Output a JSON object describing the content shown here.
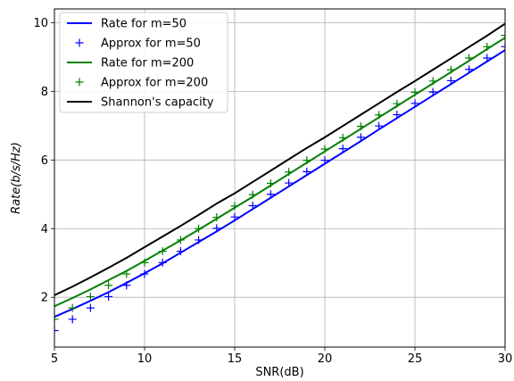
{
  "chart_data": {
    "type": "line",
    "xlabel": "SNR(dB)",
    "ylabel": "Rate(b/s/Hz)",
    "xlim": [
      5,
      30
    ],
    "ylim": [
      0.55,
      10.4
    ],
    "xticks": [
      5,
      10,
      15,
      20,
      25,
      30
    ],
    "yticks": [
      2,
      4,
      6,
      8,
      10
    ],
    "grid": true,
    "legend_position": "upper-left",
    "legend": [
      {
        "label": "Rate for m=50",
        "kind": "line",
        "color": "#0000ff"
      },
      {
        "label": "Approx for m=50",
        "kind": "marker",
        "color": "#0000ff"
      },
      {
        "label": "Rate for m=200",
        "kind": "line",
        "color": "#008000"
      },
      {
        "label": "Approx for m=200",
        "kind": "marker",
        "color": "#008000"
      },
      {
        "label": "Shannon's capacity",
        "kind": "line",
        "color": "#000000"
      }
    ],
    "x": [
      5,
      6,
      7,
      8,
      9,
      10,
      11,
      12,
      13,
      14,
      15,
      16,
      17,
      18,
      19,
      20,
      21,
      22,
      23,
      24,
      25,
      26,
      27,
      28,
      29,
      30
    ],
    "series": [
      {
        "name": "Rate for m=50",
        "style": "line",
        "color": "#0000ff",
        "values": [
          1.43,
          1.66,
          1.9,
          2.15,
          2.42,
          2.7,
          2.99,
          3.3,
          3.61,
          3.92,
          4.24,
          4.57,
          4.9,
          5.23,
          5.56,
          5.89,
          6.22,
          6.55,
          6.89,
          7.22,
          7.55,
          7.88,
          8.21,
          8.54,
          8.87,
          9.2
        ]
      },
      {
        "name": "Approx for m=50",
        "style": "marker",
        "color": "#0000ff",
        "values": [
          1.03,
          1.36,
          1.69,
          2.02,
          2.35,
          2.68,
          3.01,
          3.34,
          3.67,
          4.01,
          4.34,
          4.67,
          5.0,
          5.33,
          5.66,
          5.99,
          6.33,
          6.66,
          6.99,
          7.32,
          7.65,
          7.98,
          8.31,
          8.64,
          8.97,
          9.3
        ]
      },
      {
        "name": "Rate for m=200",
        "style": "line",
        "color": "#008000",
        "values": [
          1.74,
          1.98,
          2.23,
          2.5,
          2.77,
          3.06,
          3.36,
          3.66,
          3.97,
          4.29,
          4.61,
          4.93,
          5.26,
          5.59,
          5.92,
          6.25,
          6.58,
          6.91,
          7.24,
          7.57,
          7.9,
          8.23,
          8.56,
          8.89,
          9.23,
          9.56
        ]
      },
      {
        "name": "Approx for m=200",
        "style": "marker",
        "color": "#008000",
        "values": [
          1.36,
          1.69,
          2.02,
          2.35,
          2.68,
          3.01,
          3.34,
          3.67,
          4.0,
          4.33,
          4.66,
          4.99,
          5.32,
          5.65,
          5.99,
          6.32,
          6.65,
          6.98,
          7.31,
          7.64,
          7.97,
          8.3,
          8.63,
          8.97,
          9.3,
          9.63
        ]
      },
      {
        "name": "Shannon's capacity",
        "style": "line",
        "color": "#000000",
        "values": [
          2.06,
          2.31,
          2.58,
          2.86,
          3.15,
          3.46,
          3.77,
          4.08,
          4.4,
          4.73,
          5.03,
          5.36,
          5.69,
          6.02,
          6.35,
          6.66,
          6.99,
          7.32,
          7.65,
          7.98,
          8.3,
          8.63,
          8.96,
          9.29,
          9.62,
          9.97
        ]
      }
    ]
  }
}
